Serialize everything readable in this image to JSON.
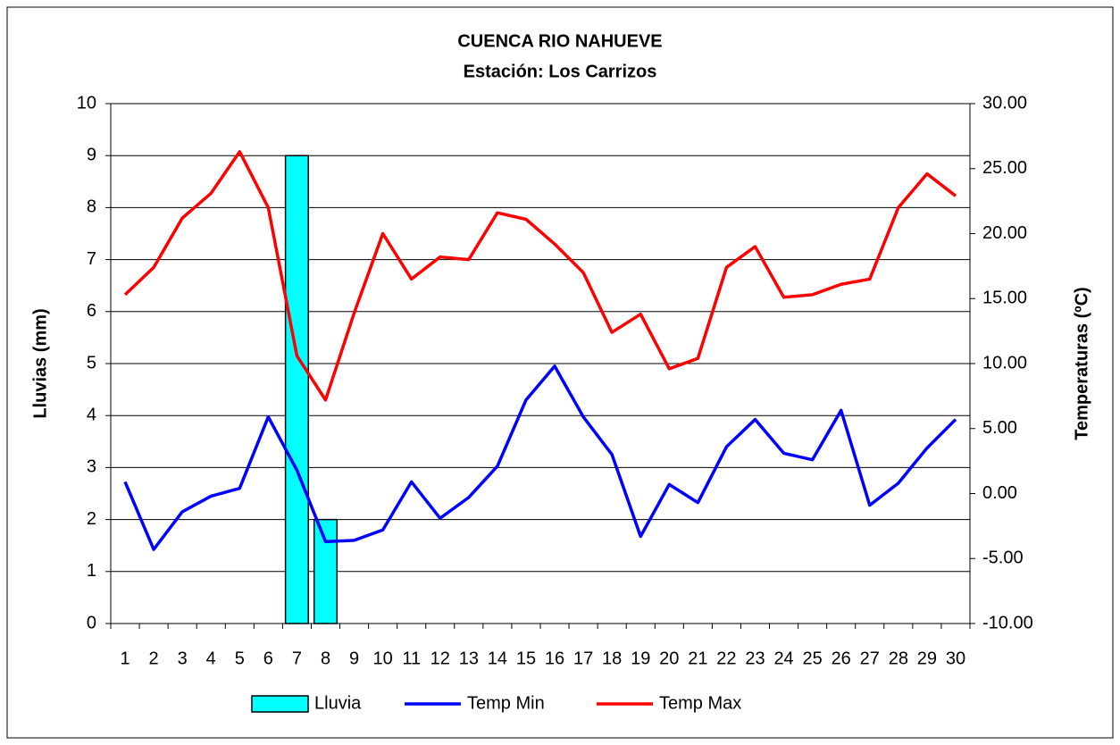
{
  "chart_data": {
    "type": "bar",
    "title": "CUENCA RIO NAHUEVE",
    "subtitle": "Estación: Los Carrizos",
    "y_label": "Lluvias (mm)",
    "y2_label": "Temperaturas (ºC)",
    "categories": [
      "1",
      "2",
      "3",
      "4",
      "5",
      "6",
      "7",
      "8",
      "9",
      "10",
      "11",
      "12",
      "13",
      "14",
      "15",
      "16",
      "17",
      "18",
      "19",
      "20",
      "21",
      "22",
      "23",
      "24",
      "25",
      "26",
      "27",
      "28",
      "29",
      "30"
    ],
    "series": [
      {
        "name": "Lluvia",
        "type": "bar",
        "axis": "y",
        "color": "#00ffff",
        "values": [
          0,
          0,
          0,
          0,
          0,
          0,
          9,
          2,
          0,
          0,
          0,
          0,
          0,
          0,
          0,
          0,
          0,
          0,
          0,
          0,
          0,
          0,
          0,
          0,
          0,
          0,
          0,
          0,
          0,
          0
        ]
      },
      {
        "name": "Temp Min",
        "type": "line",
        "axis": "y2",
        "color": "#0000ff",
        "values": [
          0.9,
          -4.3,
          -1.4,
          -0.2,
          0.4,
          5.9,
          1.8,
          -3.7,
          -3.6,
          -2.8,
          0.9,
          -1.9,
          -0.3,
          2.1,
          7.2,
          9.8,
          5.9,
          3.0,
          -3.3,
          0.7,
          -0.7,
          3.6,
          5.7,
          3.1,
          2.6,
          6.4,
          -0.9,
          0.8,
          3.5,
          5.7
        ]
      },
      {
        "name": "Temp Max",
        "type": "line",
        "axis": "y2",
        "color": "#ff0000",
        "values": [
          15.3,
          17.4,
          21.2,
          23.1,
          26.3,
          22.0,
          10.6,
          7.2,
          13.9,
          20.0,
          16.5,
          18.2,
          18.0,
          21.6,
          21.1,
          19.2,
          17.0,
          12.4,
          13.8,
          9.6,
          10.4,
          17.4,
          19.0,
          15.1,
          15.3,
          16.1,
          16.5,
          22.0,
          24.6,
          22.9
        ]
      }
    ],
    "ylim": [
      0,
      10
    ],
    "yticks": [
      0,
      1,
      2,
      3,
      4,
      5,
      6,
      7,
      8,
      9,
      10
    ],
    "y2lim": [
      -10,
      30
    ],
    "y2ticks": [
      {
        "value": -10,
        "label": "-10.00"
      },
      {
        "value": -5,
        "label": "-5.00"
      },
      {
        "value": 0,
        "label": "0.00"
      },
      {
        "value": 5,
        "label": "5.00"
      },
      {
        "value": 10,
        "label": "10.00"
      },
      {
        "value": 15,
        "label": "15.00"
      },
      {
        "value": 20,
        "label": "20.00"
      },
      {
        "value": 25,
        "label": "25.00"
      },
      {
        "value": 30,
        "label": "30.00"
      }
    ],
    "grid": true,
    "legend": "bottom"
  }
}
